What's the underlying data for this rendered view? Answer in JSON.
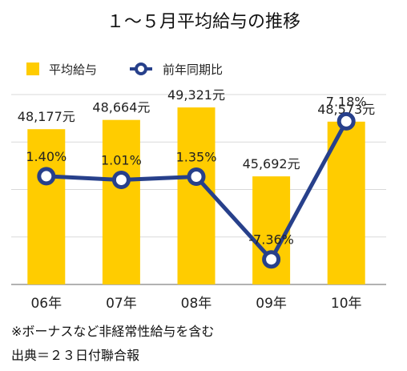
{
  "title": "１～５月平均給与の推移",
  "legend": {
    "bar_label": "平均給与",
    "line_label": "前年同期比"
  },
  "colors": {
    "bar": "#FFCC00",
    "line": "#27408B",
    "marker_fill": "#FFFFFF",
    "grid": "#D9D9D9",
    "axis": "#999999"
  },
  "chart_data": {
    "type": "bar",
    "categories": [
      "06年",
      "07年",
      "08年",
      "09年",
      "10年"
    ],
    "series": [
      {
        "name": "平均給与",
        "type": "bar",
        "values": [
          48177,
          48664,
          49321,
          45692,
          48573
        ],
        "labels": [
          "48,177元",
          "48,664元",
          "49,321元",
          "45,692元",
          "48,573元"
        ]
      },
      {
        "name": "前年同期比",
        "type": "line",
        "values": [
          1.4,
          1.01,
          1.35,
          -7.36,
          7.18
        ],
        "labels": [
          "1.40%",
          "1.01%",
          "1.35%",
          "-7.36%",
          "7.18%"
        ]
      }
    ],
    "bar_ylim": [
      40000,
      50000
    ],
    "line_ylim": [
      -10,
      10
    ],
    "grid": true,
    "legend_position": "top-left"
  },
  "notes": [
    "※ボーナスなど非経常性給与を含む",
    "出典＝２３日付聯合報"
  ]
}
